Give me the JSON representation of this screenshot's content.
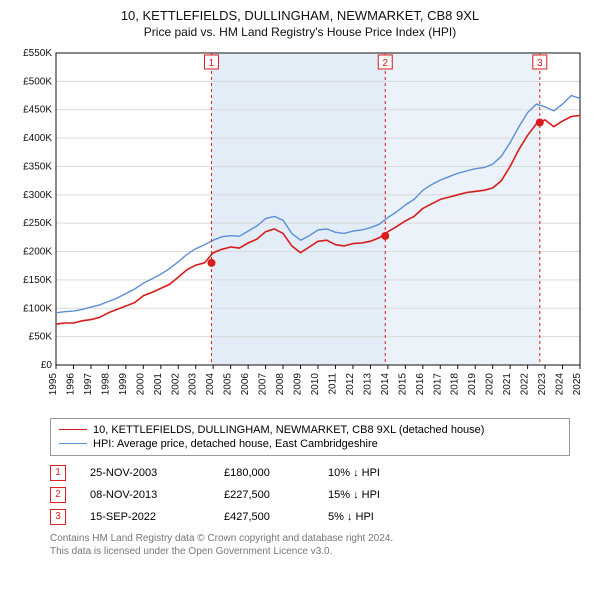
{
  "title_line1": "10, KETTLEFIELDS, DULLINGHAM, NEWMARKET, CB8 9XL",
  "title_line2": "Price paid vs. HM Land Registry's House Price Index (HPI)",
  "chart": {
    "background_color": "#ffffff",
    "band_color": "#e2edf7",
    "grid_color": "#d9d9d9",
    "axis_color": "#111111",
    "tick_font_size": 10,
    "x_years": [
      1995,
      1996,
      1997,
      1998,
      1999,
      2000,
      2001,
      2002,
      2003,
      2004,
      2005,
      2006,
      2007,
      2008,
      2009,
      2010,
      2011,
      2012,
      2013,
      2014,
      2015,
      2016,
      2017,
      2018,
      2019,
      2020,
      2021,
      2022,
      2023,
      2024,
      2025
    ],
    "y_min": 0,
    "y_max": 550000,
    "y_step": 50000,
    "y_prefix": "£",
    "y_suffix": "K",
    "series": [
      {
        "name": "property",
        "label": "10, KETTLEFIELDS, DULLINGHAM, NEWMARKET, CB8 9XL (detached house)",
        "color": "#d81b1b",
        "width": 1.6,
        "points": [
          [
            1995.0,
            72000
          ],
          [
            1995.5,
            74000
          ],
          [
            1996.0,
            74000
          ],
          [
            1996.5,
            78000
          ],
          [
            1997.0,
            80000
          ],
          [
            1997.5,
            84000
          ],
          [
            1998.0,
            92000
          ],
          [
            1998.5,
            98000
          ],
          [
            1999.0,
            104000
          ],
          [
            1999.5,
            110000
          ],
          [
            2000.0,
            122000
          ],
          [
            2000.5,
            128000
          ],
          [
            2001.0,
            135000
          ],
          [
            2001.5,
            142000
          ],
          [
            2002.0,
            155000
          ],
          [
            2002.5,
            168000
          ],
          [
            2003.0,
            176000
          ],
          [
            2003.5,
            180000
          ],
          [
            2004.0,
            198000
          ],
          [
            2004.5,
            204000
          ],
          [
            2005.0,
            208000
          ],
          [
            2005.5,
            206000
          ],
          [
            2006.0,
            215000
          ],
          [
            2006.5,
            222000
          ],
          [
            2007.0,
            235000
          ],
          [
            2007.5,
            240000
          ],
          [
            2008.0,
            232000
          ],
          [
            2008.5,
            210000
          ],
          [
            2009.0,
            198000
          ],
          [
            2009.5,
            208000
          ],
          [
            2010.0,
            218000
          ],
          [
            2010.5,
            220000
          ],
          [
            2011.0,
            212000
          ],
          [
            2011.5,
            210000
          ],
          [
            2012.0,
            214000
          ],
          [
            2012.5,
            215000
          ],
          [
            2013.0,
            218000
          ],
          [
            2013.5,
            224000
          ],
          [
            2014.0,
            235000
          ],
          [
            2014.5,
            244000
          ],
          [
            2015.0,
            254000
          ],
          [
            2015.5,
            262000
          ],
          [
            2016.0,
            276000
          ],
          [
            2016.5,
            284000
          ],
          [
            2017.0,
            292000
          ],
          [
            2017.5,
            296000
          ],
          [
            2018.0,
            300000
          ],
          [
            2018.5,
            304000
          ],
          [
            2019.0,
            306000
          ],
          [
            2019.5,
            308000
          ],
          [
            2020.0,
            312000
          ],
          [
            2020.5,
            325000
          ],
          [
            2021.0,
            350000
          ],
          [
            2021.5,
            380000
          ],
          [
            2022.0,
            405000
          ],
          [
            2022.5,
            425000
          ],
          [
            2023.0,
            432000
          ],
          [
            2023.5,
            420000
          ],
          [
            2024.0,
            430000
          ],
          [
            2024.5,
            438000
          ],
          [
            2025.0,
            440000
          ]
        ]
      },
      {
        "name": "hpi",
        "label": "HPI: Average price, detached house, East Cambridgeshire",
        "color": "#5b8fd6",
        "width": 1.4,
        "points": [
          [
            1995.0,
            92000
          ],
          [
            1995.5,
            94000
          ],
          [
            1996.0,
            95000
          ],
          [
            1996.5,
            98000
          ],
          [
            1997.0,
            102000
          ],
          [
            1997.5,
            106000
          ],
          [
            1998.0,
            112000
          ],
          [
            1998.5,
            118000
          ],
          [
            1999.0,
            126000
          ],
          [
            1999.5,
            134000
          ],
          [
            2000.0,
            144000
          ],
          [
            2000.5,
            152000
          ],
          [
            2001.0,
            160000
          ],
          [
            2001.5,
            170000
          ],
          [
            2002.0,
            182000
          ],
          [
            2002.5,
            195000
          ],
          [
            2003.0,
            205000
          ],
          [
            2003.5,
            212000
          ],
          [
            2004.0,
            220000
          ],
          [
            2004.5,
            226000
          ],
          [
            2005.0,
            228000
          ],
          [
            2005.5,
            227000
          ],
          [
            2006.0,
            236000
          ],
          [
            2006.5,
            245000
          ],
          [
            2007.0,
            258000
          ],
          [
            2007.5,
            262000
          ],
          [
            2008.0,
            255000
          ],
          [
            2008.5,
            232000
          ],
          [
            2009.0,
            220000
          ],
          [
            2009.5,
            228000
          ],
          [
            2010.0,
            238000
          ],
          [
            2010.5,
            240000
          ],
          [
            2011.0,
            234000
          ],
          [
            2011.5,
            232000
          ],
          [
            2012.0,
            236000
          ],
          [
            2012.5,
            238000
          ],
          [
            2013.0,
            242000
          ],
          [
            2013.5,
            248000
          ],
          [
            2014.0,
            260000
          ],
          [
            2014.5,
            270000
          ],
          [
            2015.0,
            282000
          ],
          [
            2015.5,
            292000
          ],
          [
            2016.0,
            308000
          ],
          [
            2016.5,
            318000
          ],
          [
            2017.0,
            326000
          ],
          [
            2017.5,
            332000
          ],
          [
            2018.0,
            338000
          ],
          [
            2018.5,
            342000
          ],
          [
            2019.0,
            346000
          ],
          [
            2019.5,
            348000
          ],
          [
            2020.0,
            354000
          ],
          [
            2020.5,
            368000
          ],
          [
            2021.0,
            392000
          ],
          [
            2021.5,
            420000
          ],
          [
            2022.0,
            445000
          ],
          [
            2022.5,
            460000
          ],
          [
            2023.0,
            455000
          ],
          [
            2023.5,
            448000
          ],
          [
            2024.0,
            460000
          ],
          [
            2024.5,
            475000
          ],
          [
            2025.0,
            470000
          ]
        ]
      }
    ],
    "markers": [
      {
        "n": "1",
        "year": 2003.9,
        "dot_y": 180000,
        "label_y": 540000
      },
      {
        "n": "2",
        "year": 2013.85,
        "dot_y": 227500,
        "label_y": 540000
      },
      {
        "n": "3",
        "year": 2022.7,
        "dot_y": 427500,
        "label_y": 540000
      }
    ],
    "marker_line_color": "#d81b1b",
    "marker_box_border": "#d81b1b",
    "marker_box_fill": "#ffffff",
    "marker_dot_fill": "#d81b1b"
  },
  "legend": {
    "row1_label": "10, KETTLEFIELDS, DULLINGHAM, NEWMARKET, CB8 9XL (detached house)",
    "row2_label": "HPI: Average price, detached house, East Cambridgeshire"
  },
  "marker_table": [
    {
      "n": "1",
      "date": "25-NOV-2003",
      "price": "£180,000",
      "delta": "10% ↓ HPI"
    },
    {
      "n": "2",
      "date": "08-NOV-2013",
      "price": "£227,500",
      "delta": "15% ↓ HPI"
    },
    {
      "n": "3",
      "date": "15-SEP-2022",
      "price": "£427,500",
      "delta": "5% ↓ HPI"
    }
  ],
  "license_line1": "Contains HM Land Registry data © Crown copyright and database right 2024.",
  "license_line2": "This data is licensed under the Open Government Licence v3.0."
}
